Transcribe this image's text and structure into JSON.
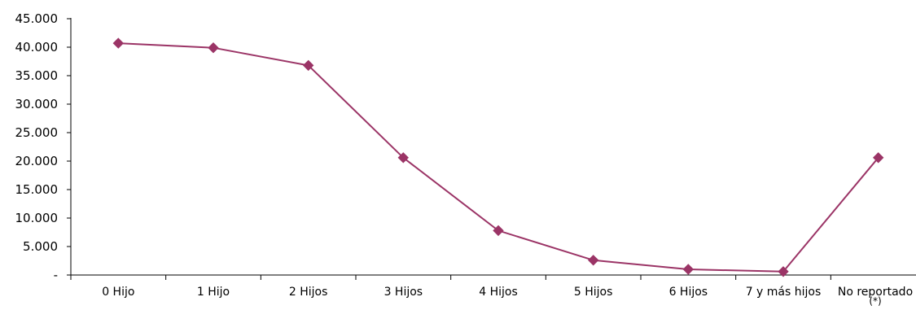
{
  "chart_data": {
    "type": "line",
    "categories": [
      "0 Hijo",
      "1 Hijo",
      "2 Hijos",
      "3 Hijos",
      "4 Hijos",
      "5 Hijos",
      "6 Hijos",
      "7 y más hijos",
      "No reportado (*)"
    ],
    "category_lines": [
      [
        "0 Hijo"
      ],
      [
        "1 Hijo"
      ],
      [
        "2 Hijos"
      ],
      [
        "3 Hijos"
      ],
      [
        "4 Hijos"
      ],
      [
        "5 Hijos"
      ],
      [
        "6 Hijos"
      ],
      [
        "7 y más hijos"
      ],
      [
        "No reportado",
        "(*)"
      ]
    ],
    "series": [
      {
        "values": [
          40700,
          39900,
          36800,
          20600,
          7800,
          2600,
          1000,
          600,
          20600
        ],
        "color": "#9b3466",
        "marker": "diamond"
      }
    ],
    "ylim": [
      0,
      45000
    ],
    "yticks": [
      0,
      5000,
      10000,
      15000,
      20000,
      25000,
      30000,
      35000,
      40000,
      45000
    ],
    "ytick_labels": [
      "-",
      "5.000",
      "10.000",
      "15.000",
      "20.000",
      "25.000",
      "30.000",
      "35.000",
      "40.000",
      "45.000"
    ],
    "title": "",
    "xlabel": "",
    "ylabel": "",
    "grid": false,
    "legend": "none"
  }
}
